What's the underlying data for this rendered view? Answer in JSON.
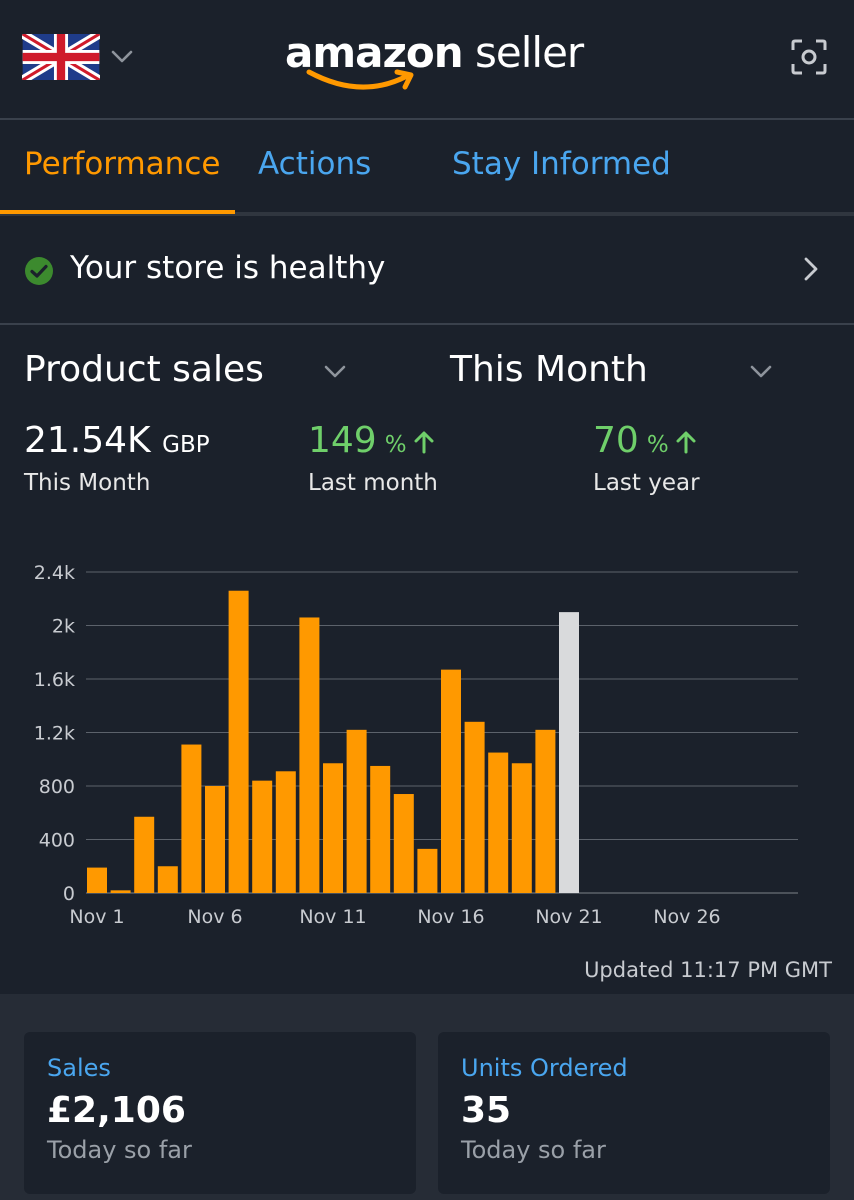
{
  "header": {
    "logo": {
      "brand": "amazon",
      "product": "seller"
    },
    "flag_icon": "uk-flag-icon",
    "scan_icon": "scan-icon"
  },
  "tabs": [
    {
      "label": "Performance",
      "active": true
    },
    {
      "label": "Actions",
      "active": false
    },
    {
      "label": "Stay Informed",
      "active": false
    }
  ],
  "health": {
    "text": "Your store is healthy"
  },
  "selectors": {
    "metric": "Product sales",
    "period": "This Month"
  },
  "stats": {
    "total": {
      "value": "21.54K",
      "unit": "GBP",
      "label": "This Month"
    },
    "last_month": {
      "value": "149",
      "unit": "%",
      "label": "Last month"
    },
    "last_year": {
      "value": "70",
      "unit": "%",
      "label": "Last year"
    }
  },
  "chart_data": {
    "type": "bar",
    "ylim": [
      0,
      2400
    ],
    "yticks": [
      0,
      400,
      800,
      1200,
      1600,
      2000,
      2400
    ],
    "ytick_labels": [
      "0",
      "400",
      "800",
      "1.2k",
      "1.6k",
      "2k",
      "2.4k"
    ],
    "xtick_labels": [
      "Nov 1",
      "Nov 6",
      "Nov 11",
      "Nov 16",
      "Nov 21",
      "Nov 26"
    ],
    "xtick_days": [
      1,
      6,
      11,
      16,
      21,
      26
    ],
    "days": [
      1,
      2,
      3,
      4,
      5,
      6,
      7,
      8,
      9,
      10,
      11,
      12,
      13,
      14,
      15,
      16,
      17,
      18,
      19,
      20
    ],
    "values": [
      190,
      20,
      570,
      200,
      1110,
      800,
      2260,
      840,
      910,
      2060,
      970,
      1220,
      950,
      740,
      330,
      1670,
      1280,
      1050,
      970,
      1220
    ],
    "projected_days": [
      21
    ],
    "projected_values": [
      2100
    ],
    "colors": {
      "actual": "#ff9900",
      "projected": "#d9dadc",
      "grid": "#5c626b"
    },
    "grid": true
  },
  "updated": "Updated 11:17 PM GMT",
  "cards": [
    {
      "title": "Sales",
      "value": "£2,106",
      "sub": "Today so far"
    },
    {
      "title": "Units Ordered",
      "value": "35",
      "sub": "Today so far"
    }
  ]
}
